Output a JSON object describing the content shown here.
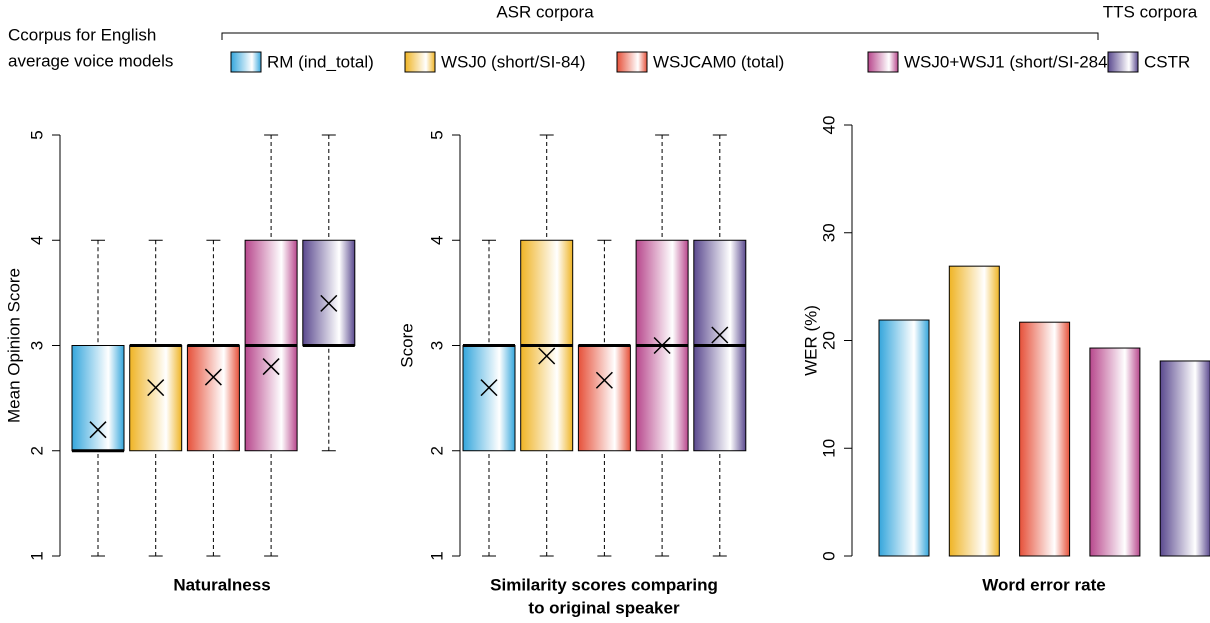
{
  "legend": {
    "title": [
      "Ccorpus for English",
      "average voice models"
    ],
    "groups": [
      "ASR corpora",
      "TTS corpora"
    ],
    "items": [
      {
        "name": "RM (ind_total)",
        "color": "#35a6dc"
      },
      {
        "name": "WSJ0 (short/SI-84)",
        "color": "#efb425"
      },
      {
        "name": "WSJCAM0 (total)",
        "color": "#e6513a"
      },
      {
        "name": "WSJ0+WSJ1 (short/SI-284)",
        "color": "#b8488d"
      },
      {
        "name": "CSTR",
        "color": "#5b4a8f"
      }
    ]
  },
  "chart_data": [
    {
      "type": "box",
      "title": [
        "Naturalness"
      ],
      "ylabel": "Mean Opinion Score",
      "ylim": [
        1,
        5
      ],
      "yticks": [
        1,
        2,
        3,
        4,
        5
      ],
      "boxes": [
        {
          "min": 1,
          "q1": 2,
          "median": 2,
          "q3": 3,
          "max": 4,
          "mean": 2.2
        },
        {
          "min": 1,
          "q1": 2,
          "median": 3,
          "q3": 3,
          "max": 4,
          "mean": 2.6
        },
        {
          "min": 1,
          "q1": 2,
          "median": 3,
          "q3": 3,
          "max": 4,
          "mean": 2.7
        },
        {
          "min": 1,
          "q1": 2,
          "median": 3,
          "q3": 4,
          "max": 5,
          "mean": 2.8
        },
        {
          "min": 2,
          "q1": 3,
          "median": 3,
          "q3": 4,
          "max": 5,
          "mean": 3.4
        }
      ]
    },
    {
      "type": "box",
      "title": [
        "Similarity scores comparing",
        "to original speaker"
      ],
      "ylabel": "Score",
      "ylim": [
        1,
        5
      ],
      "yticks": [
        1,
        2,
        3,
        4,
        5
      ],
      "boxes": [
        {
          "min": 1,
          "q1": 2,
          "median": 3,
          "q3": 3,
          "max": 4,
          "mean": 2.6
        },
        {
          "min": 1,
          "q1": 2,
          "median": 3,
          "q3": 4,
          "max": 5,
          "mean": 2.9
        },
        {
          "min": 1,
          "q1": 2,
          "median": 3,
          "q3": 3,
          "max": 4,
          "mean": 2.67
        },
        {
          "min": 1,
          "q1": 2,
          "median": 3,
          "q3": 4,
          "max": 5,
          "mean": 3.0
        },
        {
          "min": 1,
          "q1": 2,
          "median": 3,
          "q3": 4,
          "max": 5,
          "mean": 3.1
        }
      ]
    },
    {
      "type": "bar",
      "title": [
        "Word error rate"
      ],
      "ylabel": "WER (%)",
      "ylim": [
        0,
        40
      ],
      "yticks": [
        0,
        10,
        20,
        30,
        40
      ],
      "values": [
        21.9,
        26.9,
        21.7,
        19.3,
        18.1
      ]
    }
  ]
}
